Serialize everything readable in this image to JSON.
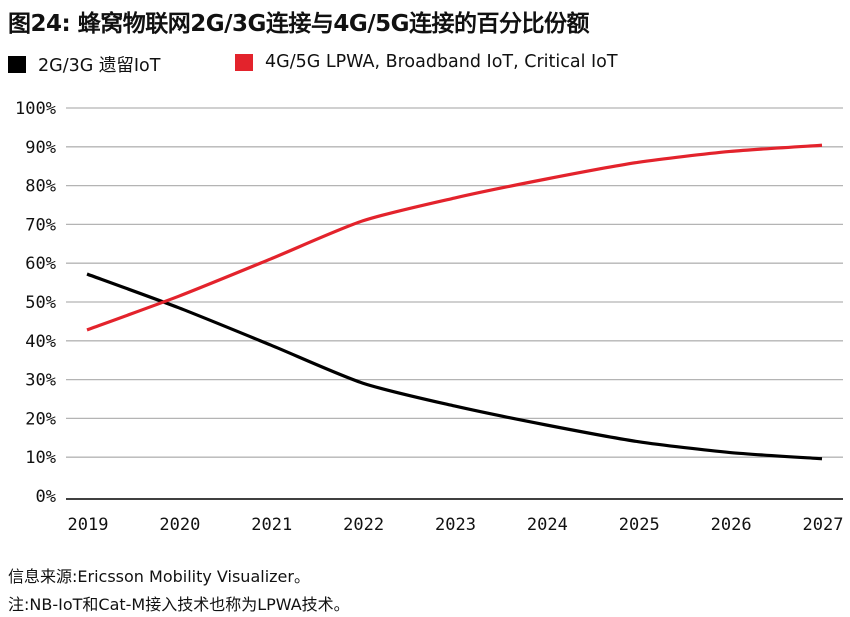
{
  "title": "图24: 蜂窝物联网2G/3G连接与4G/5G连接的百分比份额",
  "footer": {
    "source": "信息来源:Ericsson Mobility Visualizer。",
    "note": "注:NB-IoT和Cat-M接入技术也称为LPWA技术。"
  },
  "chart_data": {
    "type": "line",
    "title": "图24: 蜂窝物联网2G/3G连接与4G/5G连接的百分比份额",
    "xlabel": "",
    "ylabel": "",
    "x": [
      "2019",
      "2020",
      "2021",
      "2022",
      "2023",
      "2024",
      "2025",
      "2026",
      "2027"
    ],
    "ylim": [
      0,
      100
    ],
    "yticks": [
      0,
      10,
      20,
      30,
      40,
      50,
      60,
      70,
      80,
      90,
      100
    ],
    "ytick_labels": [
      "0%",
      "10%",
      "20%",
      "30%",
      "40%",
      "50%",
      "60%",
      "70%",
      "80%",
      "90%",
      "100%"
    ],
    "grid": true,
    "legend_position": "top-left",
    "series": [
      {
        "name": "2G/3G 遗留IoT",
        "color": "#000000",
        "values": [
          57.2,
          48.5,
          38.9,
          29.1,
          23.2,
          18.3,
          14.0,
          11.2,
          9.6
        ]
      },
      {
        "name": "4G/5G LPWA, Broadband IoT, Critical IoT",
        "color": "#E3232C",
        "values": [
          42.8,
          51.5,
          61.1,
          70.9,
          76.8,
          81.7,
          86.0,
          88.8,
          90.4
        ]
      }
    ]
  }
}
